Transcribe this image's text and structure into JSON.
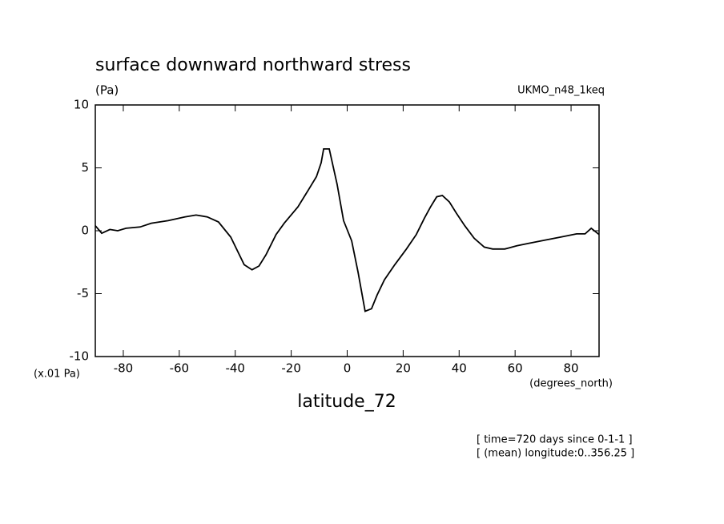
{
  "chart_data": {
    "type": "line",
    "title": "surface downward northward stress",
    "y_units": "(Pa)",
    "dataset": "UKMO_n48_1keq",
    "y_scale_label": "(x.01 Pa)",
    "x_units": "(degrees_north)",
    "xlabel": "latitude_72",
    "notes": [
      "[ time=720 days since 0-1-1 ]",
      "[ (mean) longitude:0..356.25 ]"
    ],
    "xlim": [
      -90,
      90
    ],
    "ylim": [
      -10,
      10
    ],
    "xticks": [
      -80,
      -60,
      -40,
      -20,
      0,
      20,
      40,
      60,
      80
    ],
    "yticks": [
      -10,
      -5,
      0,
      5,
      10
    ],
    "series": [
      {
        "color": "#000000",
        "x": [
          -90,
          -87.7,
          -84.8,
          -82,
          -79,
          -74,
          -70,
          -64,
          -58,
          -54,
          -50,
          -46,
          -41.6,
          -36.8,
          -34,
          -31.5,
          -29,
          -25.4,
          -22.5,
          -17.6,
          -14,
          -11,
          -9.3,
          -8.4,
          -6.4,
          -3.6,
          -1.3,
          1.6,
          3.9,
          6.4,
          8.7,
          10.7,
          13.3,
          17,
          21,
          24.7,
          27.6,
          29.8,
          32,
          34,
          36.5,
          39,
          42,
          45.4,
          49,
          52,
          56.3,
          60.6,
          64.8,
          70.6,
          76.3,
          82,
          85,
          87.2,
          90
        ],
        "values": [
          0.4,
          -0.2,
          0.1,
          0,
          0.2,
          0.3,
          0.6,
          0.8,
          1.1,
          1.25,
          1.1,
          0.7,
          -0.5,
          -2.7,
          -3.1,
          -2.8,
          -1.9,
          -0.3,
          0.6,
          1.9,
          3.2,
          4.3,
          5.4,
          6.5,
          6.5,
          3.7,
          0.8,
          -0.8,
          -3.3,
          -6.4,
          -6.2,
          -5.1,
          -3.9,
          -2.7,
          -1.5,
          -0.3,
          1.0,
          1.9,
          2.7,
          2.8,
          2.3,
          1.4,
          0.4,
          -0.6,
          -1.3,
          -1.45,
          -1.45,
          -1.2,
          -1.0,
          -0.75,
          -0.5,
          -0.25,
          -0.25,
          0.2,
          -0.3
        ]
      }
    ]
  }
}
